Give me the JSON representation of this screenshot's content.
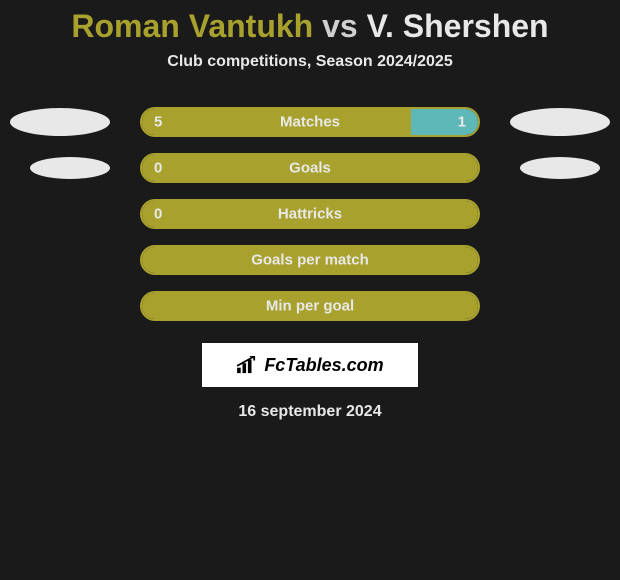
{
  "title": {
    "player1": "Roman Vantukh",
    "vs": "vs",
    "player2": "V. Shershen"
  },
  "subtitle": "Club competitions, Season 2024/2025",
  "stats": [
    {
      "label": "Matches",
      "left_val": "5",
      "right_val": "1",
      "left_pct": 80,
      "right_pct": 20,
      "show_left": true,
      "show_right": true,
      "blob_left": true,
      "blob_right": true
    },
    {
      "label": "Goals",
      "left_val": "0",
      "right_val": "",
      "left_pct": 100,
      "right_pct": 0,
      "show_left": true,
      "show_right": false,
      "blob_left": true,
      "blob_right": true
    },
    {
      "label": "Hattricks",
      "left_val": "0",
      "right_val": "",
      "left_pct": 100,
      "right_pct": 0,
      "show_left": true,
      "show_right": false,
      "blob_left": false,
      "blob_right": false
    },
    {
      "label": "Goals per match",
      "left_val": "",
      "right_val": "",
      "left_pct": 100,
      "right_pct": 0,
      "show_left": false,
      "show_right": false,
      "blob_left": false,
      "blob_right": false
    },
    {
      "label": "Min per goal",
      "left_val": "",
      "right_val": "",
      "left_pct": 100,
      "right_pct": 0,
      "show_left": false,
      "show_right": false,
      "blob_left": false,
      "blob_right": false
    }
  ],
  "logo_text": "FcTables.com",
  "date": "16 september 2024",
  "colors": {
    "olive": "#a8a12e",
    "teal": "#5fb8b8",
    "white": "#e8e8e8",
    "bg": "#1a1a1a"
  }
}
